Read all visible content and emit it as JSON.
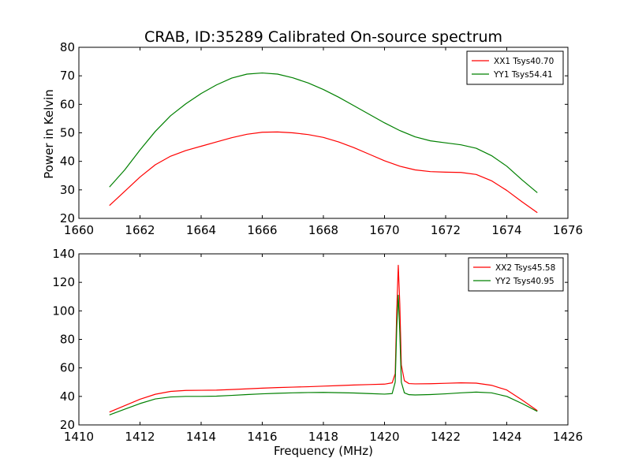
{
  "figure": {
    "title": "CRAB, ID:35289 Calibrated On-source spectrum",
    "ylabel": "Power in Kelvin",
    "xlabel": "Frequency (MHz)"
  },
  "colors": {
    "red": "#ff0000",
    "green": "#008000"
  },
  "chart_data": [
    {
      "type": "line",
      "xlim": [
        1660,
        1676
      ],
      "ylim": [
        20,
        80
      ],
      "xticks": [
        1660,
        1662,
        1664,
        1666,
        1668,
        1670,
        1672,
        1674,
        1676
      ],
      "yticks": [
        20,
        30,
        40,
        50,
        60,
        70,
        80
      ],
      "ylabel": "Power in Kelvin",
      "legend_position": "top-right",
      "series": [
        {
          "name": "XX1 Tsys40.70",
          "color": "#ff0000",
          "x": [
            1661.0,
            1661.5,
            1662.0,
            1662.5,
            1663.0,
            1663.5,
            1664.0,
            1664.5,
            1665.0,
            1665.5,
            1666.0,
            1666.5,
            1667.0,
            1667.5,
            1668.0,
            1668.5,
            1669.0,
            1669.5,
            1670.0,
            1670.5,
            1671.0,
            1671.5,
            1672.0,
            1672.5,
            1673.0,
            1673.5,
            1674.0,
            1674.5,
            1675.0
          ],
          "y": [
            24.5,
            29.5,
            34.5,
            38.8,
            41.8,
            43.8,
            45.3,
            46.8,
            48.3,
            49.5,
            50.2,
            50.3,
            50.0,
            49.4,
            48.4,
            46.8,
            44.8,
            42.5,
            40.2,
            38.3,
            37.0,
            36.4,
            36.2,
            36.1,
            35.4,
            33.2,
            29.8,
            25.8,
            22.0
          ]
        },
        {
          "name": "YY1 Tsys54.41",
          "color": "#008000",
          "x": [
            1661.0,
            1661.5,
            1662.0,
            1662.5,
            1663.0,
            1663.5,
            1664.0,
            1664.5,
            1665.0,
            1665.5,
            1666.0,
            1666.5,
            1667.0,
            1667.5,
            1668.0,
            1668.5,
            1669.0,
            1669.5,
            1670.0,
            1670.5,
            1671.0,
            1671.5,
            1672.0,
            1672.5,
            1673.0,
            1673.5,
            1674.0,
            1674.5,
            1675.0
          ],
          "y": [
            31.0,
            37.0,
            44.0,
            50.5,
            56.0,
            60.2,
            63.8,
            66.8,
            69.2,
            70.6,
            71.0,
            70.6,
            69.3,
            67.5,
            65.2,
            62.5,
            59.5,
            56.5,
            53.5,
            50.8,
            48.6,
            47.2,
            46.5,
            45.8,
            44.6,
            42.0,
            38.3,
            33.5,
            29.0
          ]
        }
      ]
    },
    {
      "type": "line",
      "xlim": [
        1410,
        1426
      ],
      "ylim": [
        20,
        140
      ],
      "xticks": [
        1410,
        1412,
        1414,
        1416,
        1418,
        1420,
        1422,
        1424,
        1426
      ],
      "yticks": [
        20,
        40,
        60,
        80,
        100,
        120,
        140
      ],
      "xlabel": "Frequency (MHz)",
      "legend_position": "top-right",
      "series": [
        {
          "name": "XX2 Tsys45.58",
          "color": "#ff0000",
          "x": [
            1411.0,
            1411.5,
            1412.0,
            1412.5,
            1413.0,
            1413.5,
            1414.0,
            1414.5,
            1415.0,
            1415.5,
            1416.0,
            1416.5,
            1417.0,
            1417.5,
            1418.0,
            1418.5,
            1419.0,
            1419.5,
            1420.0,
            1420.25,
            1420.35,
            1420.4,
            1420.45,
            1420.5,
            1420.55,
            1420.65,
            1420.8,
            1421.0,
            1421.5,
            1422.0,
            1422.5,
            1423.0,
            1423.5,
            1424.0,
            1424.5,
            1425.0
          ],
          "y": [
            29.0,
            33.5,
            38.0,
            41.5,
            43.5,
            44.2,
            44.3,
            44.4,
            44.8,
            45.3,
            45.8,
            46.2,
            46.5,
            46.8,
            47.2,
            47.6,
            48.0,
            48.3,
            48.6,
            49.5,
            56.0,
            100.0,
            132.0,
            105.0,
            62.0,
            51.0,
            49.0,
            48.8,
            48.9,
            49.2,
            49.5,
            49.3,
            47.8,
            44.5,
            37.5,
            30.0
          ]
        },
        {
          "name": "YY2 Tsys40.95",
          "color": "#008000",
          "x": [
            1411.0,
            1411.5,
            1412.0,
            1412.5,
            1413.0,
            1413.5,
            1414.0,
            1414.5,
            1415.0,
            1415.5,
            1416.0,
            1416.5,
            1417.0,
            1417.5,
            1418.0,
            1418.5,
            1419.0,
            1419.5,
            1420.0,
            1420.25,
            1420.35,
            1420.4,
            1420.45,
            1420.5,
            1420.55,
            1420.65,
            1420.8,
            1421.0,
            1421.5,
            1422.0,
            1422.5,
            1423.0,
            1423.5,
            1424.0,
            1424.5,
            1425.0
          ],
          "y": [
            27.0,
            31.0,
            35.0,
            38.2,
            39.6,
            40.0,
            40.0,
            40.2,
            40.7,
            41.3,
            41.8,
            42.2,
            42.5,
            42.7,
            42.8,
            42.6,
            42.4,
            42.0,
            41.6,
            42.0,
            50.0,
            88.0,
            111.0,
            85.0,
            50.0,
            42.5,
            41.2,
            41.0,
            41.3,
            41.8,
            42.5,
            43.0,
            42.5,
            40.0,
            35.0,
            29.5
          ]
        }
      ]
    }
  ]
}
